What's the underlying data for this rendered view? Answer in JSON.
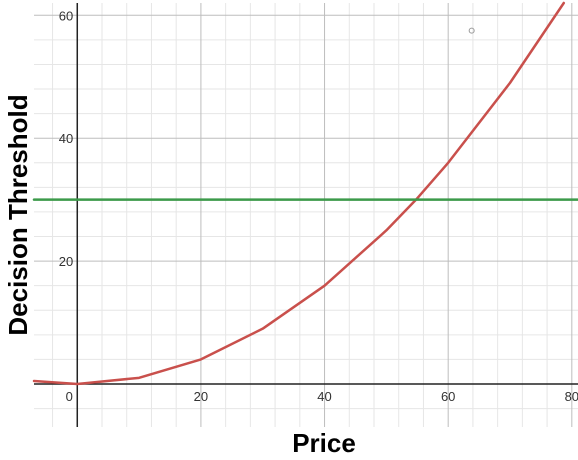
{
  "chart_data": {
    "type": "line",
    "xlabel": "Price",
    "ylabel": "Decision Threshold",
    "xlim": [
      -7,
      81
    ],
    "ylim": [
      -7,
      62
    ],
    "x_ticks": [
      0,
      20,
      40,
      60,
      80
    ],
    "y_ticks": [
      20,
      40,
      60
    ],
    "grid": true,
    "series": [
      {
        "color": "#c9504c",
        "points": [
          [
            -7,
            0.49
          ],
          [
            0,
            0
          ],
          [
            10,
            1
          ],
          [
            20,
            4
          ],
          [
            30,
            9
          ],
          [
            40,
            16
          ],
          [
            50,
            25
          ],
          [
            54.8,
            30
          ],
          [
            60,
            36
          ],
          [
            70,
            49
          ],
          [
            78.7,
            62
          ]
        ]
      },
      {
        "color": "#3c9a4a",
        "points": [
          [
            -7,
            30
          ],
          [
            81,
            30
          ]
        ]
      }
    ],
    "annotations": [
      {
        "type": "open-circle-marker",
        "x": 63.8,
        "y": 57.5,
        "color": "#9a9a9a"
      }
    ]
  }
}
